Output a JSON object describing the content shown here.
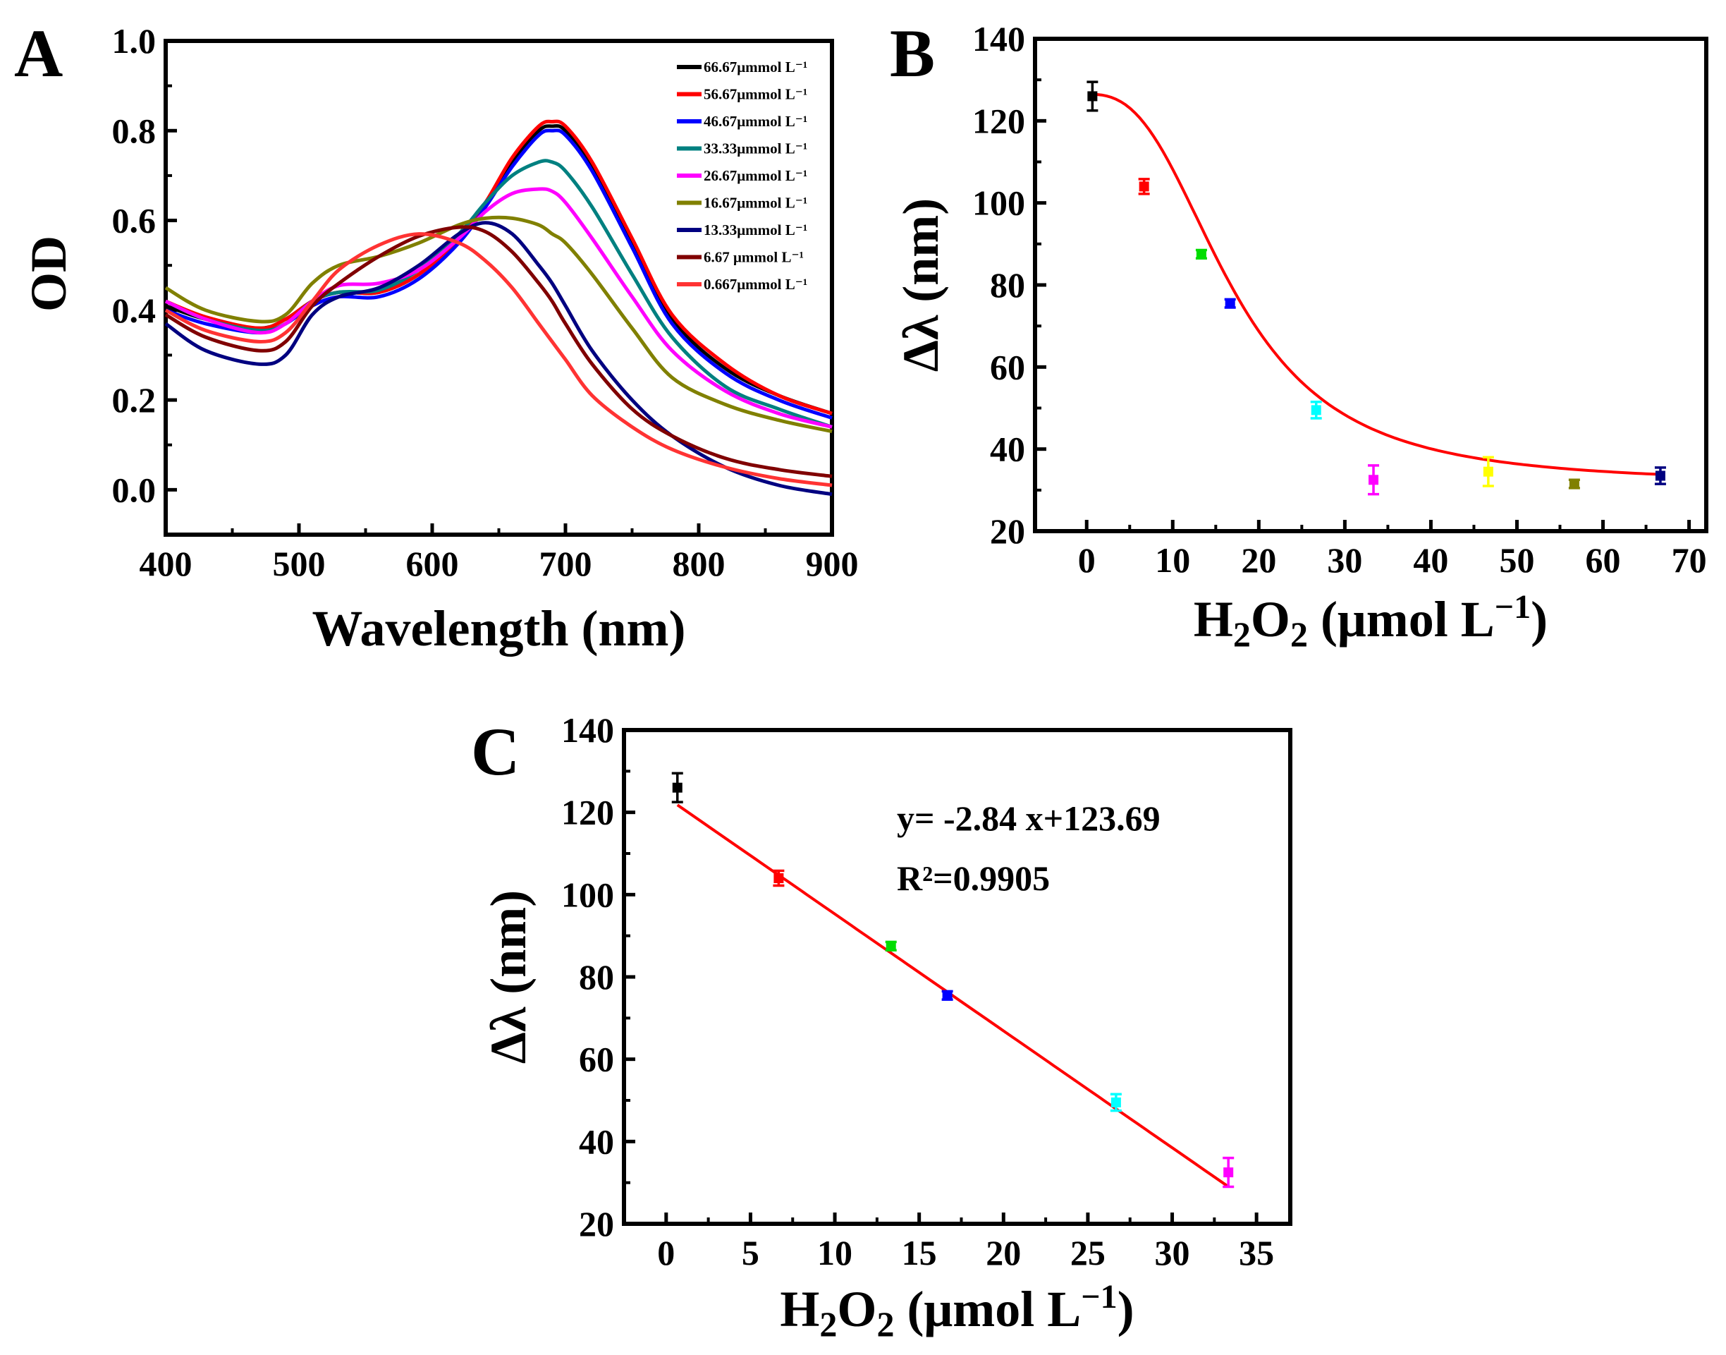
{
  "panels": {
    "A": {
      "label": "A"
    },
    "B": {
      "label": "B"
    },
    "C": {
      "label": "C"
    }
  },
  "chart_data": [
    {
      "id": "A",
      "type": "line",
      "title": "",
      "xlabel": "Wavelength (nm)",
      "ylabel": "OD",
      "xlim": [
        400,
        900
      ],
      "ylim": [
        -0.1,
        1.0
      ],
      "xticks": [
        400,
        500,
        600,
        700,
        800,
        900
      ],
      "yticks": [
        0.0,
        0.2,
        0.4,
        0.6,
        0.8,
        1.0
      ],
      "ytick_labels": [
        "0.0",
        "0.2",
        "0.4",
        "0.6",
        "0.8",
        "1.0"
      ],
      "legend_position": "top-right",
      "x": [
        400,
        430,
        470,
        490,
        510,
        530,
        560,
        590,
        620,
        640,
        660,
        680,
        690,
        700,
        720,
        750,
        780,
        820,
        860,
        900
      ],
      "series": [
        {
          "name": "66.67μmmol L⁻¹",
          "color": "#000000",
          "values": [
            0.41,
            0.38,
            0.36,
            0.38,
            0.42,
            0.44,
            0.44,
            0.48,
            0.56,
            0.64,
            0.73,
            0.8,
            0.81,
            0.8,
            0.72,
            0.55,
            0.38,
            0.27,
            0.21,
            0.17
          ]
        },
        {
          "name": "56.67μmmol L⁻¹",
          "color": "#ff0000",
          "values": [
            0.42,
            0.385,
            0.36,
            0.38,
            0.42,
            0.44,
            0.44,
            0.48,
            0.56,
            0.64,
            0.74,
            0.81,
            0.82,
            0.81,
            0.73,
            0.56,
            0.39,
            0.28,
            0.21,
            0.17
          ]
        },
        {
          "name": "46.67μmmol L⁻¹",
          "color": "#0000ff",
          "values": [
            0.4,
            0.37,
            0.35,
            0.37,
            0.41,
            0.43,
            0.43,
            0.47,
            0.55,
            0.63,
            0.72,
            0.79,
            0.8,
            0.79,
            0.71,
            0.54,
            0.37,
            0.26,
            0.2,
            0.16
          ]
        },
        {
          "name": "33.33μmmol L⁻¹",
          "color": "#008080",
          "values": [
            0.42,
            0.38,
            0.355,
            0.37,
            0.42,
            0.44,
            0.445,
            0.49,
            0.57,
            0.64,
            0.7,
            0.73,
            0.73,
            0.71,
            0.63,
            0.48,
            0.34,
            0.23,
            0.18,
            0.14
          ]
        },
        {
          "name": "26.67μmmol L⁻¹",
          "color": "#ff00ff",
          "values": [
            0.42,
            0.38,
            0.35,
            0.37,
            0.42,
            0.455,
            0.46,
            0.49,
            0.56,
            0.62,
            0.66,
            0.67,
            0.665,
            0.64,
            0.56,
            0.43,
            0.31,
            0.22,
            0.17,
            0.14
          ]
        },
        {
          "name": "16.67μmmol L⁻¹",
          "color": "#808000",
          "values": [
            0.45,
            0.4,
            0.375,
            0.39,
            0.46,
            0.5,
            0.52,
            0.55,
            0.59,
            0.605,
            0.605,
            0.59,
            0.57,
            0.55,
            0.48,
            0.36,
            0.25,
            0.19,
            0.155,
            0.13
          ]
        },
        {
          "name": "13.33μmmol L⁻¹",
          "color": "#000080",
          "values": [
            0.37,
            0.31,
            0.28,
            0.3,
            0.39,
            0.43,
            0.45,
            0.5,
            0.57,
            0.595,
            0.57,
            0.5,
            0.46,
            0.41,
            0.31,
            0.2,
            0.12,
            0.05,
            0.01,
            -0.01
          ]
        },
        {
          "name": "6.67 μmmol L⁻¹",
          "color": "#800000",
          "values": [
            0.39,
            0.34,
            0.31,
            0.33,
            0.41,
            0.46,
            0.52,
            0.565,
            0.585,
            0.575,
            0.53,
            0.46,
            0.42,
            0.37,
            0.28,
            0.18,
            0.12,
            0.07,
            0.045,
            0.03
          ]
        },
        {
          "name": "0.667μmmol L⁻¹",
          "color": "#ff3333",
          "values": [
            0.4,
            0.355,
            0.33,
            0.35,
            0.42,
            0.49,
            0.545,
            0.57,
            0.55,
            0.51,
            0.45,
            0.37,
            0.33,
            0.29,
            0.21,
            0.14,
            0.09,
            0.05,
            0.025,
            0.01
          ]
        }
      ]
    },
    {
      "id": "B",
      "type": "scatter",
      "title": "",
      "xlabel": "H2O2 (μmol L⁻¹)",
      "ylabel": "Δλ (nm)",
      "xlim": [
        -6,
        72
      ],
      "ylim": [
        20,
        140
      ],
      "xticks": [
        0,
        10,
        20,
        30,
        40,
        50,
        60,
        70
      ],
      "yticks": [
        20,
        40,
        60,
        80,
        100,
        120,
        140
      ],
      "points": [
        {
          "x": 0.667,
          "y": 126,
          "err": 3.5,
          "color": "#000000"
        },
        {
          "x": 6.67,
          "y": 104,
          "err": 1.8,
          "color": "#ff0000"
        },
        {
          "x": 13.33,
          "y": 87.5,
          "err": 1.0,
          "color": "#00dd00"
        },
        {
          "x": 16.67,
          "y": 75.5,
          "err": 1.0,
          "color": "#0000ff"
        },
        {
          "x": 26.67,
          "y": 49.5,
          "err": 2.0,
          "color": "#00ffff"
        },
        {
          "x": 33.33,
          "y": 32.5,
          "err": 3.5,
          "color": "#ff00ff"
        },
        {
          "x": 46.67,
          "y": 34.5,
          "err": 3.5,
          "color": "#ffff00"
        },
        {
          "x": 56.67,
          "y": 31.5,
          "err": 1.0,
          "color": "#808000"
        },
        {
          "x": 66.67,
          "y": 33.5,
          "err": 2.0,
          "color": "#000080"
        }
      ],
      "fit": {
        "type": "sigmoid",
        "color": "#ff0000",
        "A1": 126.5,
        "A2": 31.5,
        "x0": 17.0,
        "p": 2.7,
        "xrange": [
          0.667,
          66.67
        ]
      }
    },
    {
      "id": "C",
      "type": "scatter",
      "title": "",
      "xlabel": "H2O2 (μmol L⁻¹)",
      "ylabel": "Δλ (nm)",
      "xlim": [
        -2.5,
        37
      ],
      "ylim": [
        20,
        140
      ],
      "xticks": [
        0,
        5,
        10,
        15,
        20,
        25,
        30,
        35
      ],
      "yticks": [
        20,
        40,
        60,
        80,
        100,
        120,
        140
      ],
      "equation": "y= -2.84 x+123.69",
      "r_squared": "R²=0.9905",
      "points": [
        {
          "x": 0.667,
          "y": 126,
          "err": 3.5,
          "color": "#000000"
        },
        {
          "x": 6.67,
          "y": 104,
          "err": 1.8,
          "color": "#ff0000"
        },
        {
          "x": 13.33,
          "y": 87.5,
          "err": 1.0,
          "color": "#00dd00"
        },
        {
          "x": 16.67,
          "y": 75.5,
          "err": 1.0,
          "color": "#0000ff"
        },
        {
          "x": 26.67,
          "y": 49.5,
          "err": 2.0,
          "color": "#00ffff"
        },
        {
          "x": 33.33,
          "y": 32.5,
          "err": 3.5,
          "color": "#ff00ff"
        }
      ],
      "fit": {
        "type": "linear",
        "color": "#ff0000",
        "slope": -2.84,
        "intercept": 123.69,
        "xrange": [
          0.667,
          33.33
        ]
      }
    }
  ]
}
